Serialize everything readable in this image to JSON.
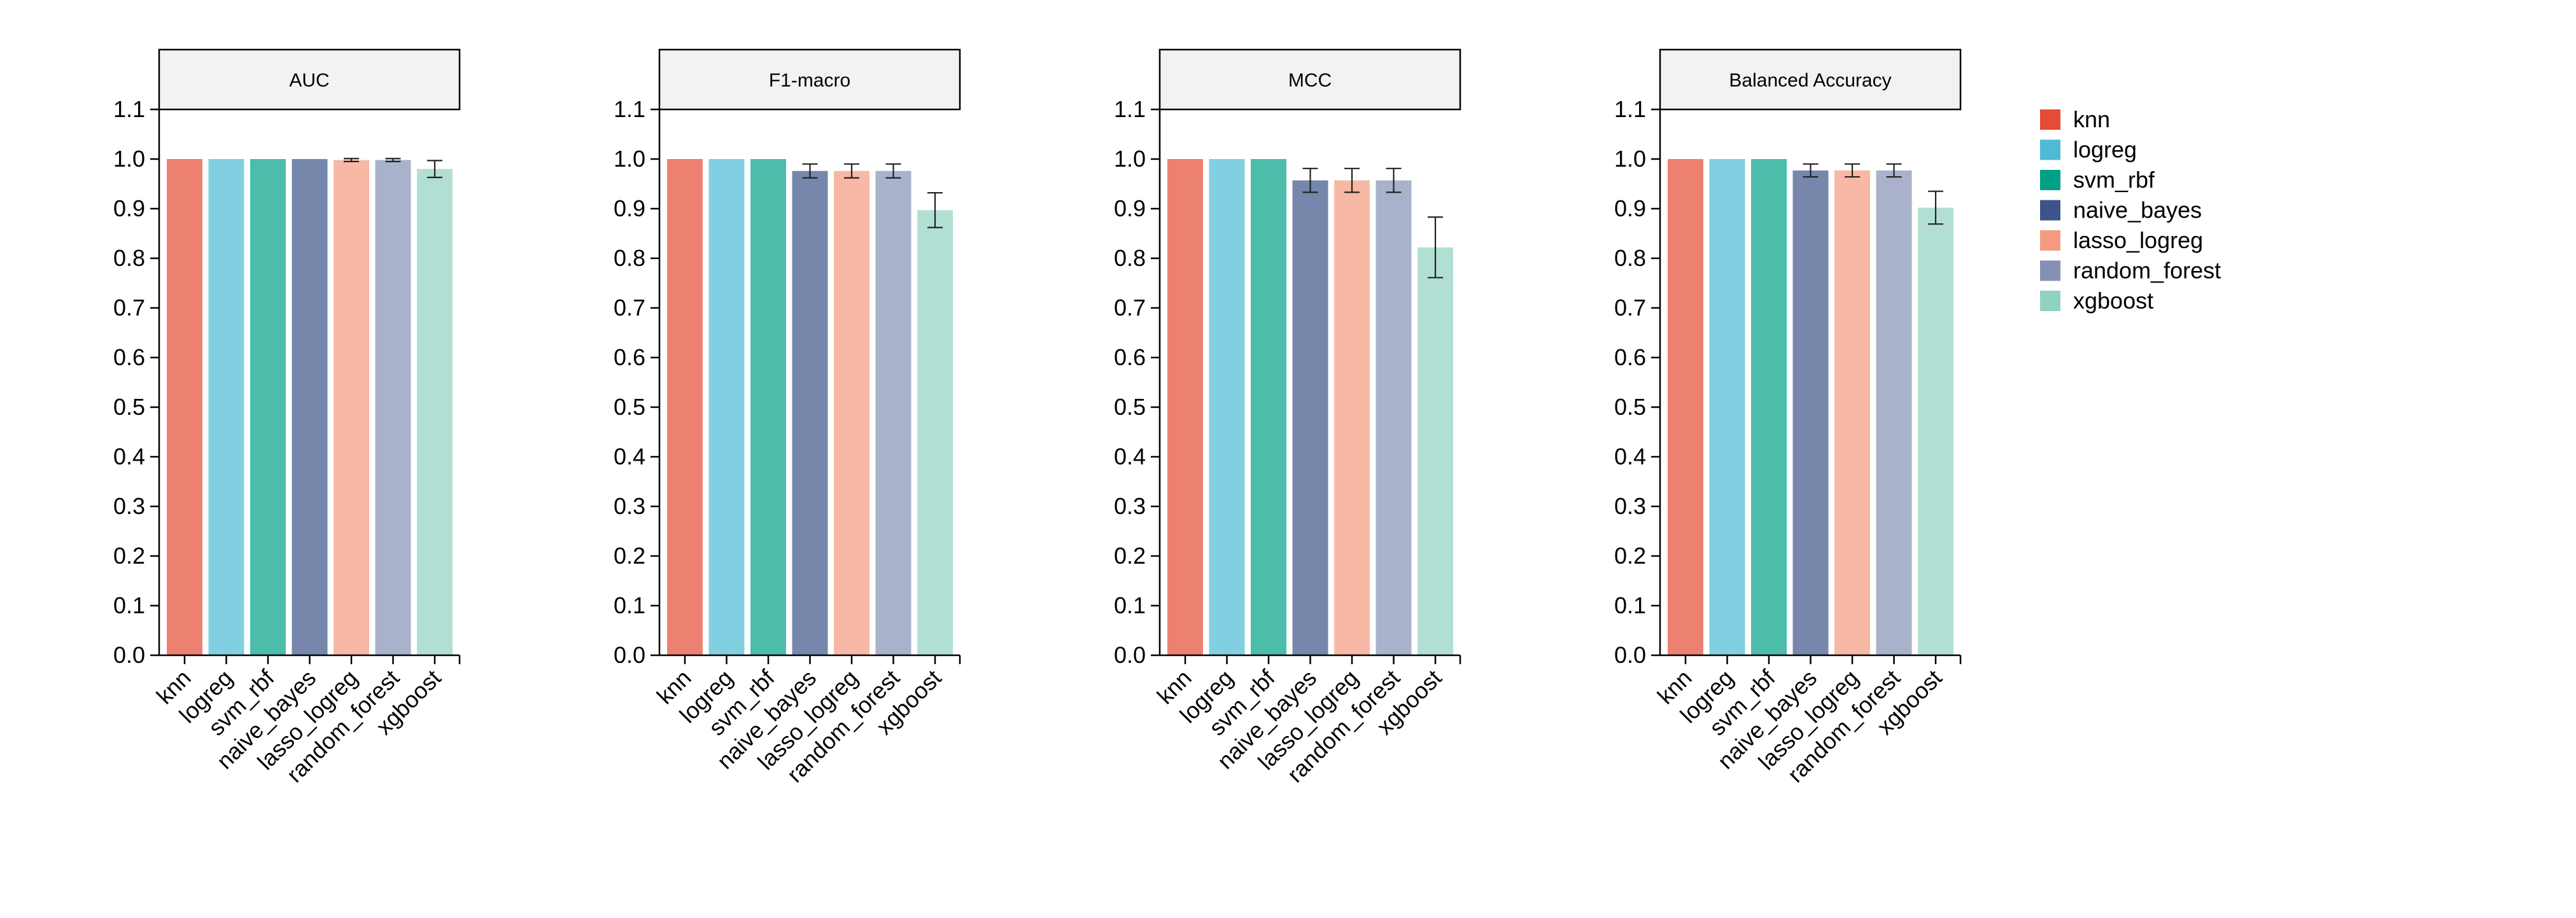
{
  "chart_data": {
    "type": "bar",
    "layout": "faceted",
    "categories": [
      "knn",
      "logreg",
      "svm_rbf",
      "naive_bayes",
      "lasso_logreg",
      "random_forest",
      "xgboost"
    ],
    "colors": {
      "knn": "#E64B35",
      "logreg": "#4DBBD5",
      "svm_rbf": "#00A087",
      "naive_bayes": "#3C5488",
      "lasso_logreg": "#F39B7F",
      "random_forest": "#8491B4",
      "xgboost": "#91D1C2"
    },
    "bar_opacity": 0.7,
    "ylim": [
      0,
      1.1
    ],
    "yticks": [
      "0.0",
      "0.1",
      "0.2",
      "0.3",
      "0.4",
      "0.5",
      "0.6",
      "0.7",
      "0.8",
      "0.9",
      "1.0",
      "1.1"
    ],
    "legend": {
      "position": "right",
      "entries": [
        "knn",
        "logreg",
        "svm_rbf",
        "naive_bayes",
        "lasso_logreg",
        "random_forest",
        "xgboost"
      ]
    },
    "panels": [
      {
        "title": "AUC",
        "values": [
          1.0,
          1.0,
          1.0,
          1.0,
          0.998,
          0.998,
          0.98
        ],
        "errors": [
          0,
          0,
          0,
          0,
          0.003,
          0.003,
          0.017
        ]
      },
      {
        "title": "F1-macro",
        "values": [
          1.0,
          1.0,
          1.0,
          0.976,
          0.976,
          0.976,
          0.897
        ],
        "errors": [
          0,
          0,
          0,
          0.014,
          0.014,
          0.014,
          0.035
        ]
      },
      {
        "title": "MCC",
        "values": [
          1.0,
          1.0,
          1.0,
          0.957,
          0.957,
          0.957,
          0.822
        ],
        "errors": [
          0,
          0,
          0,
          0.024,
          0.024,
          0.024,
          0.061
        ]
      },
      {
        "title": "Balanced Accuracy",
        "values": [
          1.0,
          1.0,
          1.0,
          0.977,
          0.977,
          0.977,
          0.902
        ],
        "errors": [
          0,
          0,
          0,
          0.013,
          0.013,
          0.013,
          0.033
        ]
      }
    ]
  }
}
